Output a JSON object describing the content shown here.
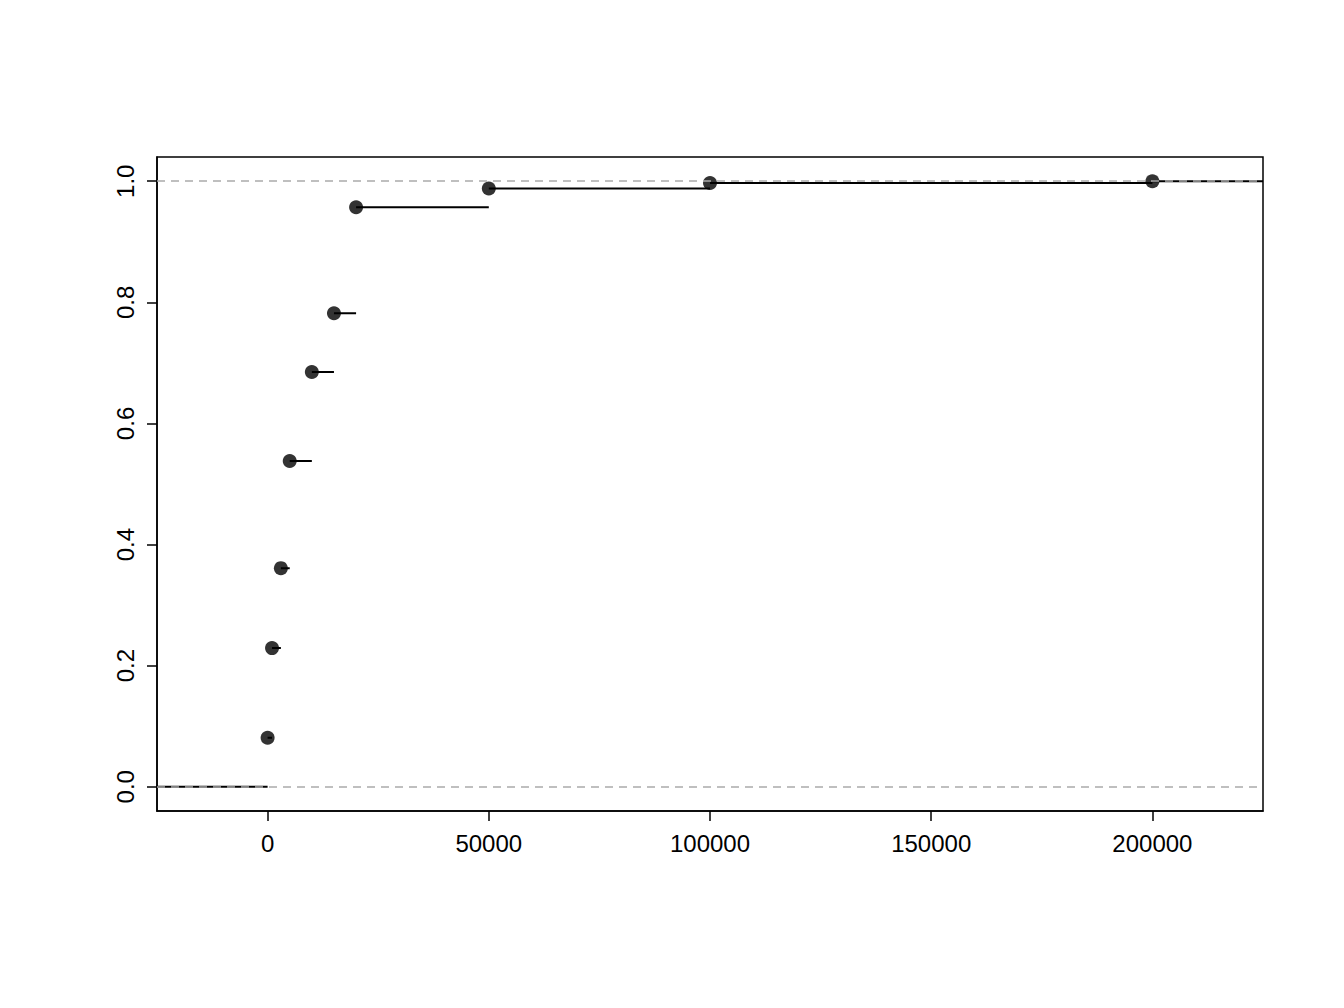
{
  "chart_data": {
    "type": "ecdf",
    "x": [
      0,
      1000,
      3000,
      5000,
      10000,
      15000,
      20000,
      50000,
      100000,
      200000
    ],
    "values": [
      0.081,
      0.229,
      0.361,
      0.538,
      0.685,
      0.782,
      0.957,
      0.988,
      0.997,
      1.0
    ],
    "color": "#000000",
    "marker": "circle",
    "xlim": [
      -25000,
      225000
    ],
    "xticks": [
      0,
      50000,
      100000,
      150000,
      200000
    ],
    "ylim": [
      -0.04,
      1.04
    ],
    "yticks": [
      {
        "value": 0,
        "label": "0.0"
      },
      0.2,
      0.4,
      0.6,
      0.8,
      {
        "value": 1,
        "label": "1.0"
      }
    ],
    "hlines": [
      0,
      1
    ],
    "grid": false
  }
}
